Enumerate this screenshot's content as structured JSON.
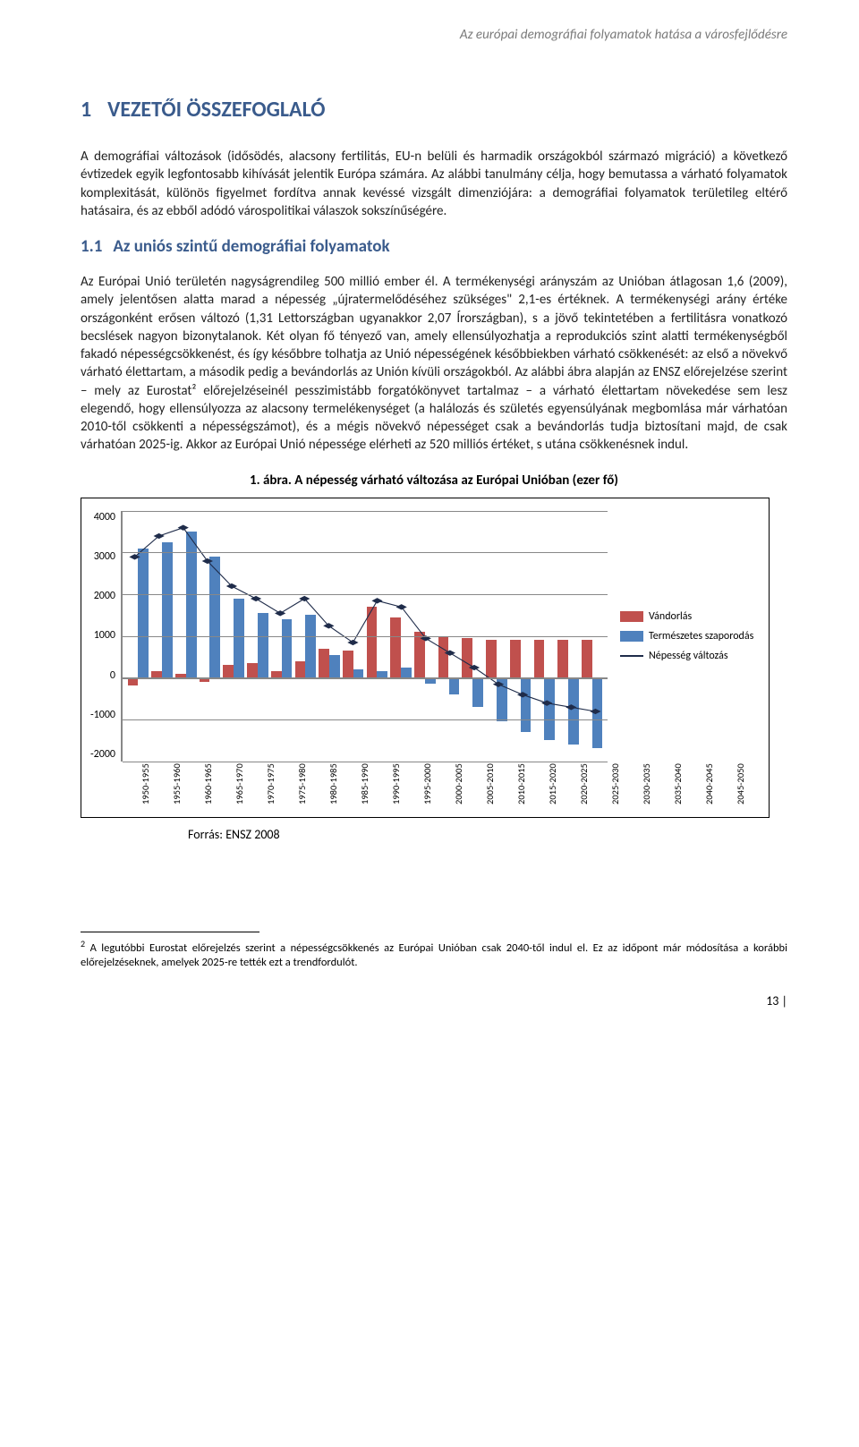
{
  "running_header": "Az európai demográfiai folyamatok hatása a városfejlődésre",
  "section": {
    "number": "1",
    "title": "VEZETŐI ÖSSZEFOGLALÓ"
  },
  "para1": "A demográfiai változások (idősödés, alacsony fertilitás, EU-n belüli és harmadik országokból származó migráció) a következő évtizedek egyik legfontosabb kihívását jelentik Európa számára. Az alábbi tanulmány célja, hogy bemutassa a várható folyamatok komplexitását, különös figyelmet fordítva annak kevéssé vizsgált dimenziójára: a demográfiai folyamatok területileg eltérő hatásaira, és az ebből adódó várospolitikai válaszok sokszínűségére.",
  "subsection": {
    "number": "1.1",
    "title": "Az uniós szintű demográfiai folyamatok"
  },
  "para2": "Az Európai Unió területén nagyságrendileg 500 millió ember él. A termékenységi arányszám az Unióban átlagosan 1,6 (2009), amely jelentősen alatta marad a népesség „újratermelődéséhez szükséges\" 2,1-es értéknek. A termékenységi arány értéke országonként erősen változó (1,31 Lettországban ugyanakkor 2,07 Írországban), s a jövő tekintetében a fertilitásra vonatkozó becslések nagyon bizonytalanok. Két olyan fő tényező van, amely ellensúlyozhatja a reprodukciós szint alatti termékenységből fakadó népességcsökkenést, és így későbbre tolhatja az Unió népességének későbbiekben várható csökkenését: az első a növekvő várható élettartam, a második pedig a bevándorlás az Unión kívüli országokból. Az alábbi ábra alapján az ENSZ előrejelzése szerint – mely az Eurostat² előrejelzéseinél pesszimistább forgatókönyvet tartalmaz – a várható élettartam növekedése sem lesz elegendő, hogy ellensúlyozza az alacsony termelékenységet (a halálozás és születés egyensúlyának megbomlása már várhatóan 2010-től csökkenti a népességszámot), és a mégis növekvő népességet csak a bevándorlás tudja biztosítani majd, de csak várhatóan 2025-ig. Akkor az Európai Unió népessége elérheti az 520 milliós értéket, s utána csökkenésnek indul.",
  "chart": {
    "type": "bar+line",
    "caption_prefix": "1. ábra.",
    "caption": "A népesség várható változása az Európai Unióban (ezer fő)",
    "y_min": -2000,
    "y_max": 4000,
    "y_ticks": [
      4000,
      3000,
      2000,
      1000,
      0,
      -1000,
      -2000
    ],
    "periods": [
      "1950-1955",
      "1955-1960",
      "1960-1965",
      "1965-1970",
      "1970-1975",
      "1975-1980",
      "1980-1985",
      "1985-1990",
      "1990-1995",
      "1995-2000",
      "2000-2005",
      "2005-2010",
      "2010-2015",
      "2015-2020",
      "2020-2025",
      "2025-2030",
      "2030-2035",
      "2035-2040",
      "2040-2045",
      "2045-2050"
    ],
    "migration": [
      -200,
      150,
      100,
      -100,
      300,
      350,
      150,
      400,
      700,
      650,
      1700,
      1450,
      1100,
      1000,
      950,
      900,
      900,
      900,
      900,
      900
    ],
    "natural": [
      3100,
      3250,
      3500,
      2900,
      1900,
      1550,
      1400,
      1500,
      550,
      200,
      150,
      250,
      -150,
      -400,
      -700,
      -1050,
      -1300,
      -1500,
      -1600,
      -1700
    ],
    "pop_change": [
      2900,
      3400,
      3600,
      2800,
      2200,
      1900,
      1550,
      1900,
      1250,
      850,
      1850,
      1700,
      950,
      600,
      250,
      -150,
      -400,
      -600,
      -700,
      -800
    ],
    "colors": {
      "migration": "#c0504d",
      "natural": "#4f81bd",
      "line": "#1f2c4a",
      "grid": "#888888",
      "background": "#ffffff"
    },
    "legend": {
      "migration": "Vándorlás",
      "natural": "Természetes szaporodás",
      "line": "Népesség változás"
    },
    "source": "Forrás: ENSZ 2008"
  },
  "footnote": {
    "marker": "2",
    "text": "A legutóbbi Eurostat előrejelzés szerint a népességcsökkenés az Európai Unióban csak 2040-től indul el. Ez az időpont már módosítása a korábbi előrejelzéseknek, amelyek 2025-re tették ezt a trendfordulót."
  },
  "page_number": "13 |"
}
